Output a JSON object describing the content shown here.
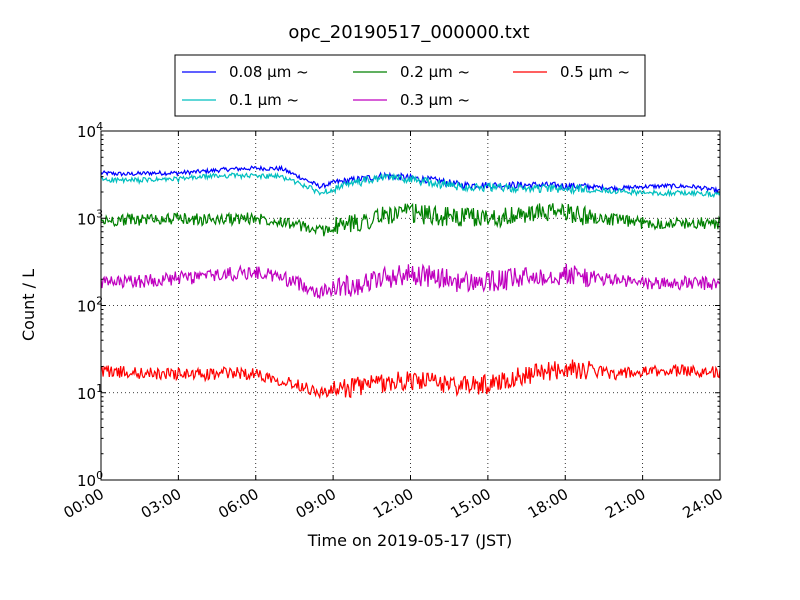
{
  "chart_data": {
    "type": "line",
    "title": "opc_20190517_000000.txt",
    "xlabel": "Time on 2019-05-17 (JST)",
    "ylabel": "Count / L",
    "yscale": "log",
    "ylim": [
      1,
      10000
    ],
    "xlim": [
      "00:00",
      "24:00"
    ],
    "grid": true,
    "legend_position": "top-center",
    "x_tick_labels": [
      "00:00",
      "03:00",
      "06:00",
      "09:00",
      "12:00",
      "15:00",
      "18:00",
      "21:00",
      "24:00"
    ],
    "y_tick_labels": [
      {
        "base": "10",
        "exp": "0",
        "value": 1
      },
      {
        "base": "10",
        "exp": "1",
        "value": 10
      },
      {
        "base": "10",
        "exp": "2",
        "value": 100
      },
      {
        "base": "10",
        "exp": "3",
        "value": 1000
      },
      {
        "base": "10",
        "exp": "4",
        "value": 10000
      }
    ],
    "x_hours": [
      0,
      1,
      2,
      3,
      4,
      5,
      6,
      7,
      8,
      8.5,
      9,
      10,
      11,
      12,
      13,
      14,
      15,
      16,
      17,
      18,
      19,
      20,
      21,
      22,
      23,
      24
    ],
    "series": [
      {
        "name": "0.08 μm ~",
        "color": "#0000ff",
        "noise": 0.025,
        "values": [
          3300,
          3200,
          3300,
          3300,
          3450,
          3650,
          3750,
          3700,
          2700,
          2300,
          2550,
          2800,
          3100,
          2900,
          2700,
          2400,
          2400,
          2400,
          2400,
          2350,
          2300,
          2200,
          2300,
          2350,
          2300,
          2050
        ]
      },
      {
        "name": "0.1 μm ~",
        "color": "#00bfbf",
        "noise": 0.03,
        "values": [
          2800,
          2700,
          2750,
          2800,
          3000,
          3100,
          3050,
          3000,
          2300,
          1950,
          2150,
          2600,
          2950,
          2800,
          2500,
          2300,
          2250,
          2200,
          2200,
          2150,
          2150,
          2050,
          1950,
          1950,
          1950,
          1850
        ]
      },
      {
        "name": "0.2 μm ~",
        "color": "#008000",
        "noise": 0.07,
        "values": [
          930,
          960,
          980,
          990,
          960,
          980,
          1000,
          940,
          770,
          710,
          790,
          900,
          1080,
          1150,
          1060,
          1020,
          1020,
          1050,
          1150,
          1180,
          1030,
          950,
          880,
          880,
          880,
          870
        ]
      },
      {
        "name": "0.3 μm ~",
        "color": "#bf00bf",
        "noise": 0.08,
        "values": [
          180,
          185,
          195,
          205,
          215,
          230,
          240,
          210,
          165,
          140,
          160,
          175,
          210,
          230,
          210,
          185,
          185,
          200,
          220,
          230,
          210,
          195,
          180,
          180,
          180,
          175
        ]
      },
      {
        "name": "0.5 μm ~",
        "color": "#ff0000",
        "noise": 0.07,
        "values": [
          18,
          17,
          16.5,
          16.5,
          16,
          17,
          16.5,
          14,
          11.5,
          10,
          10.5,
          12,
          13,
          14,
          13,
          12,
          12.5,
          15,
          17,
          19,
          18,
          16.5,
          17,
          18,
          18,
          17
        ]
      }
    ]
  }
}
